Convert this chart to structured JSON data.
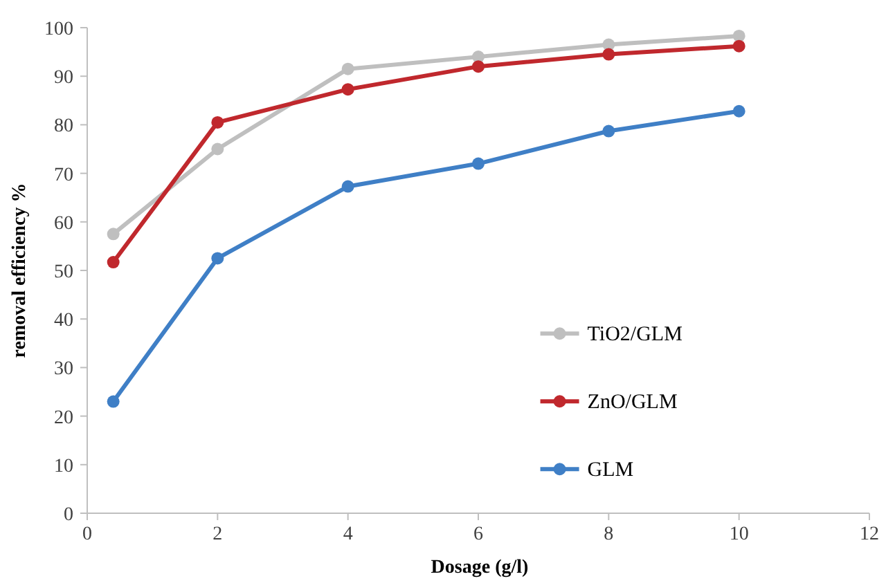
{
  "chart_data": {
    "type": "line",
    "xlabel": "Dosage (g/l)",
    "ylabel": "removal efficiency %",
    "xlim": [
      0,
      12
    ],
    "xticks": [
      0,
      2,
      4,
      6,
      8,
      10,
      12
    ],
    "ylim": [
      0,
      100
    ],
    "yticks": [
      0,
      10,
      20,
      30,
      40,
      50,
      60,
      70,
      80,
      90,
      100
    ],
    "x": [
      0.4,
      2,
      4,
      6,
      8,
      10
    ],
    "series": [
      {
        "name": "TiO2/GLM",
        "color": "#bfbfbf",
        "values": [
          57.5,
          75,
          91.5,
          94,
          96.5,
          98.3
        ]
      },
      {
        "name": "ZnO/GLM",
        "color": "#c0282d",
        "values": [
          51.7,
          80.5,
          87.3,
          92,
          94.5,
          96.2
        ]
      },
      {
        "name": "GLM",
        "color": "#3f7fc6",
        "values": [
          23,
          52.5,
          67.3,
          72,
          78.7,
          82.8
        ]
      }
    ],
    "marker": "circle",
    "line_style": "solid",
    "grid": false,
    "legend": "right"
  }
}
